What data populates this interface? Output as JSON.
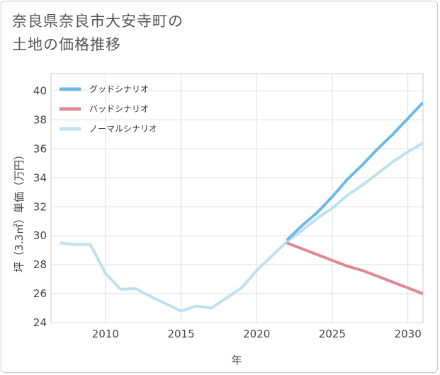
{
  "title": {
    "line1": "奈良県奈良市大安寺町の",
    "line2": "土地の価格推移"
  },
  "chart_data": {
    "type": "line",
    "xlabel": "年",
    "ylabel": "坪（3.3㎡）単価（万円）",
    "xlim": [
      2006.4,
      2031
    ],
    "ylim": [
      24,
      41.2
    ],
    "xticks": [
      2010,
      2015,
      2020,
      2025,
      2030
    ],
    "yticks": [
      24,
      26,
      28,
      30,
      32,
      34,
      36,
      38,
      40
    ],
    "grid": true,
    "legend_position": "top-left",
    "series": [
      {
        "name": "グッドシナリオ",
        "color": "#6cb8ea",
        "x": [
          2022,
          2023,
          2024,
          2025,
          2026,
          2027,
          2028,
          2029,
          2030,
          2031
        ],
        "y": [
          29.7,
          30.7,
          31.6,
          32.7,
          33.9,
          34.9,
          36.0,
          37.0,
          38.1,
          39.2
        ]
      },
      {
        "name": "バッドシナリオ",
        "color": "#de8890",
        "x": [
          2022,
          2023,
          2024,
          2025,
          2026,
          2027,
          2028,
          2029,
          2030,
          2031
        ],
        "y": [
          29.5,
          29.1,
          28.7,
          28.3,
          27.9,
          27.6,
          27.2,
          26.8,
          26.4,
          26.0
        ]
      },
      {
        "name": "ノーマルシナリオ",
        "color": "#bfe0ef",
        "x": [
          2007,
          2008,
          2009,
          2010,
          2011,
          2012,
          2013,
          2014,
          2015,
          2016,
          2017,
          2018,
          2019,
          2020,
          2021,
          2022,
          2023,
          2024,
          2025,
          2026,
          2027,
          2028,
          2029,
          2030,
          2031
        ],
        "y": [
          29.5,
          29.4,
          29.4,
          27.4,
          26.3,
          26.35,
          25.8,
          25.3,
          24.8,
          25.15,
          25.0,
          25.7,
          26.4,
          27.6,
          28.6,
          29.6,
          30.35,
          31.2,
          31.9,
          32.8,
          33.5,
          34.3,
          35.1,
          35.8,
          36.4
        ]
      }
    ]
  }
}
